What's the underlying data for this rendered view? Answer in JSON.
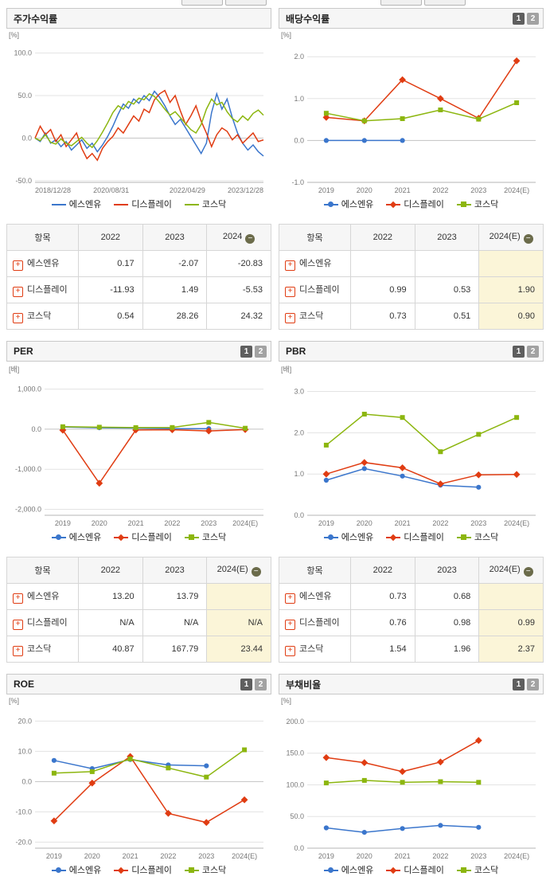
{
  "colors": {
    "s1": "#3b76cc",
    "s2": "#e03c12",
    "s3": "#8cb60f"
  },
  "series_names": [
    "에스엔유",
    "디스플레이",
    "코스닥"
  ],
  "pager": {
    "one": "1",
    "two": "2"
  },
  "panels": {
    "price": {
      "title": "주가수익률",
      "unit": "[%]"
    },
    "dividend": {
      "title": "배당수익률",
      "unit": "[%]"
    },
    "per": {
      "title": "PER",
      "unit": "[배]"
    },
    "pbr": {
      "title": "PBR",
      "unit": "[배]"
    },
    "roe": {
      "title": "ROE",
      "unit": "[%]"
    },
    "debt": {
      "title": "부채비율",
      "unit": "[%]"
    }
  },
  "chart_data": [
    {
      "id": "price",
      "type": "line",
      "title": "주가수익률",
      "ylabel": "[%]",
      "ylim": [
        -52,
        108
      ],
      "yticks": [
        {
          "v": 100,
          "label": "100.0"
        },
        {
          "v": 50,
          "label": "50.0"
        },
        {
          "v": 0,
          "label": "0.0"
        },
        {
          "v": -50,
          "label": "-50.0"
        }
      ],
      "xlabels": [
        {
          "pos": 0,
          "label": "2018/12/28"
        },
        {
          "pos": 0.333,
          "label": "2020/08/31"
        },
        {
          "pos": 0.667,
          "label": "2022/04/29"
        },
        {
          "pos": 1,
          "label": "2023/12/28"
        }
      ],
      "series": [
        {
          "name": "에스엔유",
          "color_key": "s1",
          "marker": null,
          "values": [
            0,
            -4,
            6,
            -6,
            -2,
            -10,
            -4,
            -14,
            -8,
            -2,
            -12,
            -6,
            -16,
            -8,
            2,
            14,
            28,
            40,
            35,
            46,
            41,
            50,
            44,
            55,
            48,
            38,
            26,
            16,
            22,
            12,
            2,
            -8,
            -18,
            -6,
            30,
            52,
            34,
            46,
            24,
            6,
            -6,
            -14,
            -8,
            -16,
            -21
          ]
        },
        {
          "name": "디스플레이",
          "color_key": "s2",
          "marker": null,
          "values": [
            0,
            14,
            4,
            10,
            -4,
            4,
            -10,
            -2,
            6,
            -12,
            -24,
            -18,
            -26,
            -12,
            -4,
            2,
            12,
            6,
            16,
            26,
            20,
            34,
            30,
            45,
            52,
            56,
            42,
            50,
            32,
            16,
            26,
            38,
            20,
            6,
            -10,
            4,
            12,
            8,
            -2,
            4,
            -6,
            0,
            6,
            -4,
            -2
          ]
        },
        {
          "name": "코스닥",
          "color_key": "s3",
          "marker": null,
          "values": [
            0,
            -3,
            4,
            -5,
            -7,
            -1,
            -6,
            -9,
            -4,
            1,
            -6,
            -11,
            -3,
            7,
            18,
            30,
            38,
            34,
            43,
            40,
            47,
            45,
            52,
            49,
            42,
            34,
            27,
            31,
            24,
            17,
            10,
            6,
            16,
            34,
            46,
            39,
            42,
            31,
            23,
            19,
            26,
            21,
            29,
            33,
            27
          ]
        }
      ]
    },
    {
      "id": "dividend",
      "type": "marker-line",
      "title": "배당수익률",
      "ylabel": "[%]",
      "ylim": [
        -1.0,
        2.25
      ],
      "yticks": [
        {
          "v": 2,
          "label": "2.0"
        },
        {
          "v": 1,
          "label": "1.0"
        },
        {
          "v": 0,
          "label": "0.0"
        },
        {
          "v": -1,
          "label": "-1.0"
        }
      ],
      "x": [
        "2019",
        "2020",
        "2021",
        "2022",
        "2023",
        "2024(E)"
      ],
      "series": [
        {
          "name": "에스엔유",
          "color_key": "s1",
          "marker": "circle",
          "values": [
            0,
            0,
            0,
            null,
            null,
            null
          ]
        },
        {
          "name": "디스플레이",
          "color_key": "s2",
          "marker": "diamond",
          "values": [
            0.55,
            0.47,
            1.45,
            1.0,
            0.53,
            1.9
          ]
        },
        {
          "name": "코스닥",
          "color_key": "s3",
          "marker": "square",
          "values": [
            0.65,
            0.47,
            0.52,
            0.73,
            0.51,
            0.9
          ]
        }
      ]
    },
    {
      "id": "per",
      "type": "marker-line",
      "title": "PER",
      "ylabel": "[배]",
      "pad_left": 48,
      "ylim": [
        -2150,
        1250
      ],
      "yticks": [
        {
          "v": 1000,
          "label": "1,000.0"
        },
        {
          "v": 0,
          "label": "0.0"
        },
        {
          "v": -1000,
          "label": "-1,000.0"
        },
        {
          "v": -2000,
          "label": "-2,000.0"
        }
      ],
      "x": [
        "2019",
        "2020",
        "2021",
        "2022",
        "2023",
        "2024(E)"
      ],
      "series": [
        {
          "name": "에스엔유",
          "color_key": "s1",
          "marker": "circle",
          "values": [
            55,
            35,
            28,
            13.2,
            13.8,
            null
          ]
        },
        {
          "name": "디스플레이",
          "color_key": "s2",
          "marker": "diamond",
          "values": [
            -25,
            -1350,
            -20,
            -15,
            -45,
            -10
          ]
        },
        {
          "name": "코스닥",
          "color_key": "s3",
          "marker": "square",
          "values": [
            60,
            50,
            40,
            40.87,
            167.79,
            23.44
          ]
        }
      ]
    },
    {
      "id": "pbr",
      "type": "marker-line",
      "title": "PBR",
      "ylabel": "[배]",
      "ylim": [
        0,
        3.3
      ],
      "yticks": [
        {
          "v": 3,
          "label": "3.0"
        },
        {
          "v": 2,
          "label": "2.0"
        },
        {
          "v": 1,
          "label": "1.0"
        },
        {
          "v": 0,
          "label": "0.0"
        }
      ],
      "x": [
        "2019",
        "2020",
        "2021",
        "2022",
        "2023",
        "2024(E)"
      ],
      "series": [
        {
          "name": "에스엔유",
          "color_key": "s1",
          "marker": "circle",
          "values": [
            0.85,
            1.13,
            0.95,
            0.73,
            0.68,
            null
          ]
        },
        {
          "name": "디스플레이",
          "color_key": "s2",
          "marker": "diamond",
          "values": [
            1.0,
            1.28,
            1.15,
            0.76,
            0.98,
            0.99
          ]
        },
        {
          "name": "코스닥",
          "color_key": "s3",
          "marker": "square",
          "values": [
            1.7,
            2.45,
            2.37,
            1.54,
            1.96,
            2.37
          ]
        }
      ]
    },
    {
      "id": "roe",
      "type": "marker-line",
      "title": "ROE",
      "ylabel": "[%]",
      "ylim": [
        -22,
        23
      ],
      "yticks": [
        {
          "v": 20,
          "label": "20.0"
        },
        {
          "v": 10,
          "label": "10.0"
        },
        {
          "v": 0,
          "label": "0.0"
        },
        {
          "v": -10,
          "label": "-10.0"
        },
        {
          "v": -20,
          "label": "-20.0"
        }
      ],
      "x": [
        "2019",
        "2020",
        "2021",
        "2022",
        "2023",
        "2024(E)"
      ],
      "series": [
        {
          "name": "에스엔유",
          "color_key": "s1",
          "marker": "circle",
          "values": [
            7.0,
            4.3,
            7.3,
            5.5,
            5.2,
            null
          ]
        },
        {
          "name": "디스플레이",
          "color_key": "s2",
          "marker": "diamond",
          "values": [
            -13.0,
            -0.5,
            8.3,
            -10.5,
            -13.5,
            -6.0
          ]
        },
        {
          "name": "코스닥",
          "color_key": "s3",
          "marker": "square",
          "values": [
            2.8,
            3.3,
            7.5,
            4.5,
            1.5,
            10.5
          ]
        }
      ]
    },
    {
      "id": "debt",
      "type": "marker-line",
      "title": "부채비율",
      "ylabel": "[%]",
      "ylim": [
        0,
        215
      ],
      "yticks": [
        {
          "v": 200,
          "label": "200.0"
        },
        {
          "v": 150,
          "label": "150.0"
        },
        {
          "v": 100,
          "label": "100.0"
        },
        {
          "v": 50,
          "label": "50.0"
        },
        {
          "v": 0,
          "label": "0.0"
        }
      ],
      "x": [
        "2019",
        "2020",
        "2021",
        "2022",
        "2023",
        "2024(E)"
      ],
      "series": [
        {
          "name": "에스엔유",
          "color_key": "s1",
          "marker": "circle",
          "values": [
            32,
            25,
            31,
            36,
            33,
            null
          ]
        },
        {
          "name": "디스플레이",
          "color_key": "s2",
          "marker": "diamond",
          "values": [
            143,
            135,
            121,
            136,
            170,
            null
          ]
        },
        {
          "name": "코스닥",
          "color_key": "s3",
          "marker": "square",
          "values": [
            103,
            107,
            104,
            105,
            104,
            null
          ]
        }
      ]
    }
  ],
  "tables": {
    "price": {
      "headers": [
        "항목",
        "2022",
        "2023",
        "2024"
      ],
      "rows": [
        {
          "name": "에스엔유",
          "values": [
            "0.17",
            "-2.07",
            "-20.83"
          ]
        },
        {
          "name": "디스플레이",
          "values": [
            "-11.93",
            "1.49",
            "-5.53"
          ]
        },
        {
          "name": "코스닥",
          "values": [
            "0.54",
            "28.26",
            "24.32"
          ]
        }
      ]
    },
    "dividend": {
      "headers": [
        "항목",
        "2022",
        "2023",
        "2024(E)"
      ],
      "rows": [
        {
          "name": "에스엔유",
          "values": [
            "",
            "",
            ""
          ]
        },
        {
          "name": "디스플레이",
          "values": [
            "0.99",
            "0.53",
            "1.90"
          ]
        },
        {
          "name": "코스닥",
          "values": [
            "0.73",
            "0.51",
            "0.90"
          ]
        }
      ]
    },
    "per": {
      "headers": [
        "항목",
        "2022",
        "2023",
        "2024(E)"
      ],
      "rows": [
        {
          "name": "에스엔유",
          "values": [
            "13.20",
            "13.79",
            ""
          ]
        },
        {
          "name": "디스플레이",
          "values": [
            "N/A",
            "N/A",
            "N/A"
          ]
        },
        {
          "name": "코스닥",
          "values": [
            "40.87",
            "167.79",
            "23.44"
          ]
        }
      ]
    },
    "pbr": {
      "headers": [
        "항목",
        "2022",
        "2023",
        "2024(E)"
      ],
      "rows": [
        {
          "name": "에스엔유",
          "values": [
            "0.73",
            "0.68",
            ""
          ]
        },
        {
          "name": "디스플레이",
          "values": [
            "0.76",
            "0.98",
            "0.99"
          ]
        },
        {
          "name": "코스닥",
          "values": [
            "1.54",
            "1.96",
            "2.37"
          ]
        }
      ]
    }
  }
}
